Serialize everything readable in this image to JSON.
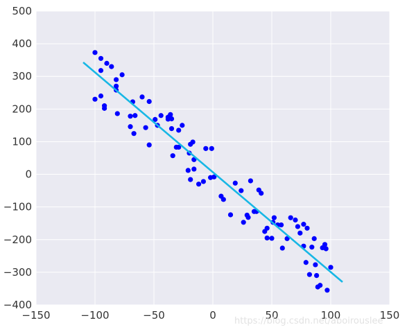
{
  "chart_data": {
    "type": "scatter",
    "title": "",
    "xlabel": "",
    "ylabel": "",
    "xlim": [
      -150,
      150
    ],
    "ylim": [
      -400,
      500
    ],
    "xticks": [
      -150,
      -100,
      -50,
      0,
      50,
      100,
      150
    ],
    "yticks": [
      -400,
      -300,
      -200,
      -100,
      0,
      100,
      200,
      300,
      400,
      500
    ],
    "grid": true,
    "background": "#eaeaf2",
    "colors": {
      "points": "#0000ff",
      "fit_line": "#17b7e5",
      "grid": "#ffffff"
    },
    "series": [
      {
        "kind": "scatter",
        "points": [
          [
            -100,
            373
          ],
          [
            -95,
            355
          ],
          [
            -90,
            340
          ],
          [
            -86,
            330
          ],
          [
            -82,
            290
          ],
          [
            -82,
            270
          ],
          [
            -82,
            258
          ],
          [
            -77,
            305
          ],
          [
            -95,
            318
          ],
          [
            -100,
            230
          ],
          [
            -95,
            240
          ],
          [
            -92,
            210
          ],
          [
            -92,
            202
          ],
          [
            -81,
            186
          ],
          [
            -68,
            222
          ],
          [
            -60,
            237
          ],
          [
            -54,
            223
          ],
          [
            -70,
            178
          ],
          [
            -66,
            180
          ],
          [
            -70,
            146
          ],
          [
            -67,
            125
          ],
          [
            -57,
            143
          ],
          [
            -49,
            168
          ],
          [
            -47,
            150
          ],
          [
            -44,
            180
          ],
          [
            -38,
            169
          ],
          [
            -38,
            175
          ],
          [
            -36,
            183
          ],
          [
            -35,
            170
          ],
          [
            -35,
            140
          ],
          [
            -29,
            135
          ],
          [
            -26,
            150
          ],
          [
            -31,
            83
          ],
          [
            -29,
            83
          ],
          [
            -34,
            57
          ],
          [
            -54,
            90
          ],
          [
            -19,
            92
          ],
          [
            -17,
            99
          ],
          [
            -20,
            65
          ],
          [
            -16,
            45
          ],
          [
            -21,
            12
          ],
          [
            -16,
            16
          ],
          [
            -19,
            -16
          ],
          [
            -12,
            -30
          ],
          [
            -8,
            -22
          ],
          [
            -6,
            79
          ],
          [
            -1,
            79
          ],
          [
            -2,
            -10
          ],
          [
            1,
            -8
          ],
          [
            7,
            -67
          ],
          [
            9,
            -77
          ],
          [
            15,
            -124
          ],
          [
            19,
            -27
          ],
          [
            24,
            -50
          ],
          [
            26,
            -147
          ],
          [
            29,
            -125
          ],
          [
            30,
            -132
          ],
          [
            32,
            -20
          ],
          [
            35,
            -114
          ],
          [
            37,
            -114
          ],
          [
            39,
            -48
          ],
          [
            41,
            -58
          ],
          [
            44,
            -175
          ],
          [
            46,
            -165
          ],
          [
            46,
            -195
          ],
          [
            50,
            -196
          ],
          [
            51,
            -147
          ],
          [
            52,
            -133
          ],
          [
            55,
            -155
          ],
          [
            58,
            -155
          ],
          [
            59,
            -226
          ],
          [
            63,
            -197
          ],
          [
            66,
            -133
          ],
          [
            70,
            -140
          ],
          [
            72,
            -160
          ],
          [
            74,
            -180
          ],
          [
            77,
            -153
          ],
          [
            77,
            -220
          ],
          [
            79,
            -270
          ],
          [
            80,
            -165
          ],
          [
            82,
            -307
          ],
          [
            84,
            -223
          ],
          [
            86,
            -197
          ],
          [
            87,
            -277
          ],
          [
            88,
            -310
          ],
          [
            89,
            -345
          ],
          [
            91,
            -340
          ],
          [
            93,
            -225
          ],
          [
            95,
            -215
          ],
          [
            96,
            -228
          ],
          [
            97,
            -355
          ],
          [
            100,
            -285
          ]
        ]
      },
      {
        "kind": "line",
        "points": [
          [
            -110,
            343
          ],
          [
            110,
            -330
          ]
        ]
      }
    ]
  },
  "watermark": "https://blog.csdn.net/aboirouslee"
}
